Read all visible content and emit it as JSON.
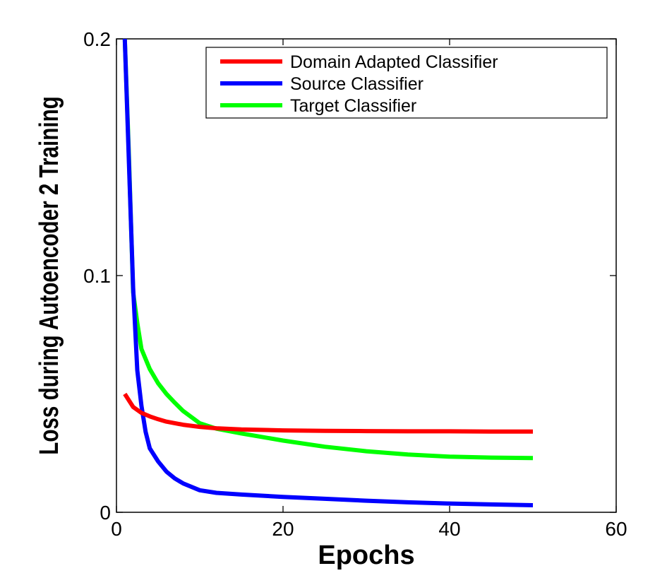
{
  "chart_data": {
    "type": "line",
    "title": "",
    "xlabel": "Epochs",
    "ylabel": "Loss during Autoencoder 2 Training",
    "xlim": [
      0,
      60
    ],
    "ylim": [
      0,
      0.2
    ],
    "xticks": [
      0,
      20,
      40,
      60
    ],
    "xtick_labels": [
      "0",
      "20",
      "40",
      "60"
    ],
    "yticks": [
      0,
      0.1,
      0.2
    ],
    "ytick_labels": [
      "0",
      "0.1",
      "0.2"
    ],
    "grid": false,
    "legend_position": "top-right",
    "series": [
      {
        "name": "Domain Adapted Classifier",
        "color": "#ff0000",
        "x": [
          1,
          2,
          3,
          4,
          5,
          6,
          8,
          10,
          12,
          15,
          20,
          25,
          30,
          35,
          40,
          45,
          50
        ],
        "y": [
          0.05,
          0.0445,
          0.042,
          0.0405,
          0.0393,
          0.0383,
          0.037,
          0.0361,
          0.0355,
          0.035,
          0.0346,
          0.0344,
          0.0343,
          0.0342,
          0.0342,
          0.0341,
          0.0341
        ]
      },
      {
        "name": "Source Classifier",
        "color": "#0000ff",
        "x": [
          1,
          2,
          2.5,
          3,
          3.5,
          4,
          5,
          6,
          7,
          8,
          10,
          12,
          15,
          20,
          25,
          30,
          35,
          40,
          45,
          50
        ],
        "y": [
          0.2,
          0.095,
          0.06,
          0.045,
          0.034,
          0.027,
          0.0215,
          0.0172,
          0.0143,
          0.0122,
          0.0093,
          0.0082,
          0.0075,
          0.0065,
          0.0057,
          0.0049,
          0.0042,
          0.0037,
          0.0033,
          0.003
        ]
      },
      {
        "name": "Target Classifier",
        "color": "#00ff00",
        "x": [
          1,
          1.5,
          2,
          2.5,
          3,
          4,
          5,
          6,
          7,
          8,
          10,
          12,
          15,
          20,
          25,
          30,
          35,
          40,
          45,
          50
        ],
        "y": [
          0.2,
          0.15,
          0.093,
          0.08,
          0.069,
          0.0605,
          0.0545,
          0.05,
          0.0463,
          0.0428,
          0.0376,
          0.0353,
          0.0333,
          0.0303,
          0.0277,
          0.0258,
          0.0244,
          0.0235,
          0.0231,
          0.0229
        ]
      }
    ]
  }
}
